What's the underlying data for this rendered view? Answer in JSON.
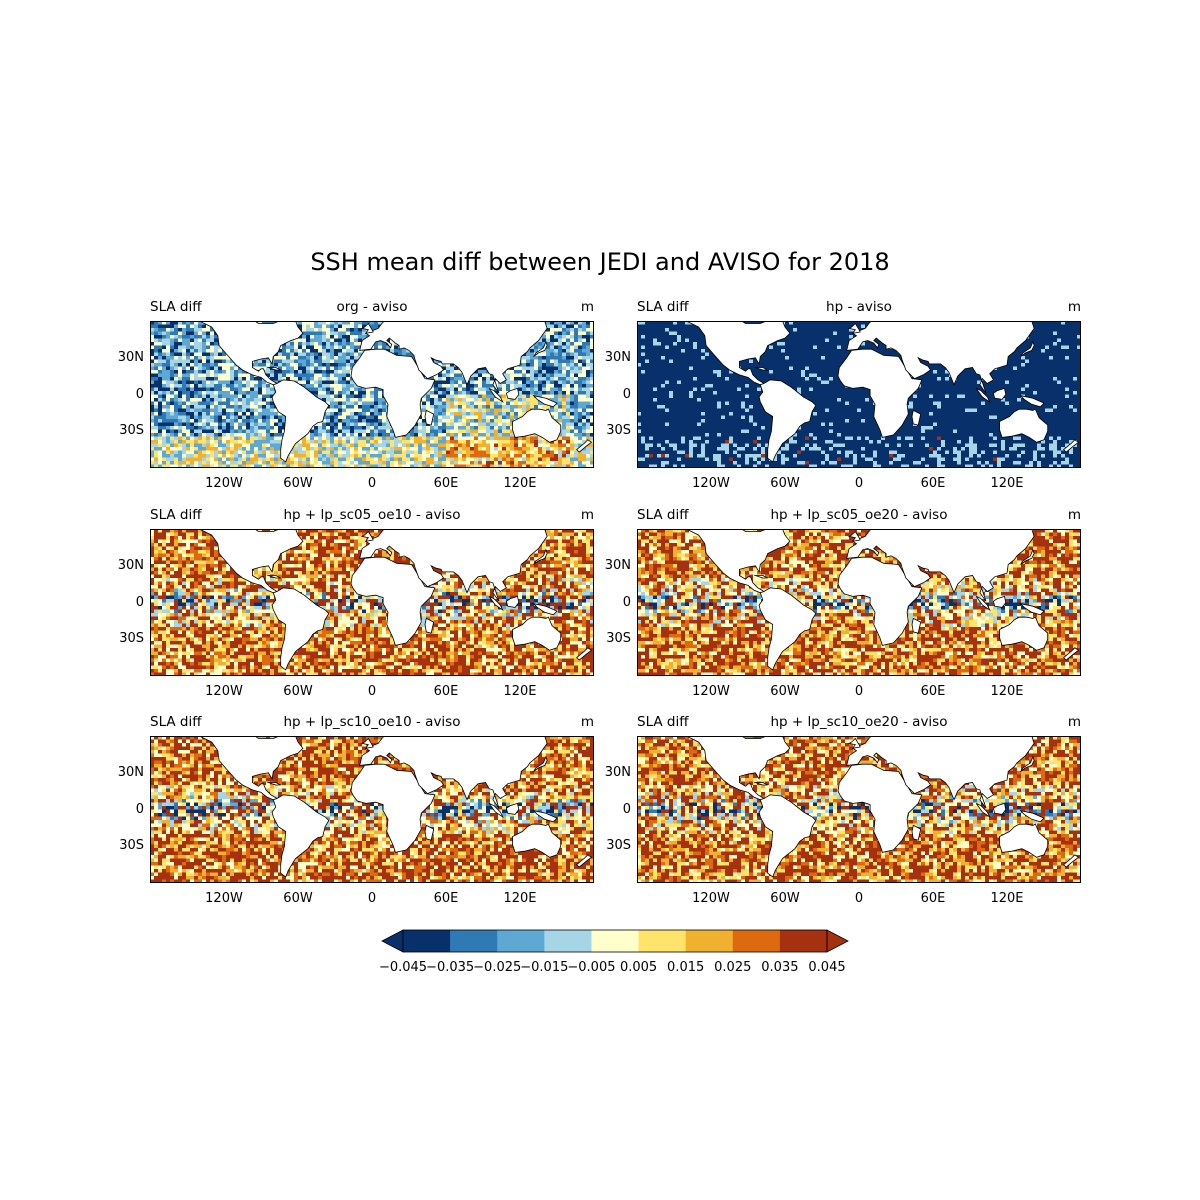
{
  "title": "SSH mean diff between JEDI and AVISO for 2018",
  "panels": [
    {
      "left_label": "SLA diff",
      "center_label": "org - aviso",
      "units": "m",
      "field": "org"
    },
    {
      "left_label": "SLA diff",
      "center_label": "hp - aviso",
      "units": "m",
      "field": "hp"
    },
    {
      "left_label": "SLA diff",
      "center_label": "hp + lp_sc05_oe10 - aviso",
      "units": "m",
      "field": "lp"
    },
    {
      "left_label": "SLA diff",
      "center_label": "hp + lp_sc05_oe20 - aviso",
      "units": "m",
      "field": "lp"
    },
    {
      "left_label": "SLA diff",
      "center_label": "hp + lp_sc10_oe10 - aviso",
      "units": "m",
      "field": "lp"
    },
    {
      "left_label": "SLA diff",
      "center_label": "hp + lp_sc10_oe20 - aviso",
      "units": "m",
      "field": "lp"
    }
  ],
  "axes": {
    "lat_ticks": [
      "30N",
      "0",
      "30S"
    ],
    "lon_ticks": [
      "120W",
      "60W",
      "0",
      "60E",
      "120E"
    ]
  },
  "chart_data": {
    "type": "heatmap",
    "projection": "PlateCarree",
    "lon_range": [
      -180,
      180
    ],
    "lat_range": [
      -60,
      60
    ],
    "lat_tick_values": [
      30,
      0,
      -30
    ],
    "lon_tick_values": [
      -120,
      -60,
      0,
      60,
      120
    ],
    "colorbar": {
      "levels": [
        -0.045,
        -0.035,
        -0.025,
        -0.015,
        -0.005,
        0.005,
        0.015,
        0.025,
        0.035,
        0.045
      ],
      "tick_labels": [
        "−0.045",
        "−0.035",
        "−0.025",
        "−0.015",
        "−0.005",
        "0.005",
        "0.015",
        "0.025",
        "0.035",
        "0.045"
      ],
      "colors": [
        "#08306b",
        "#2f79b5",
        "#5fa8d3",
        "#a6d5e8",
        "#ffffcc",
        "#ffe36b",
        "#f0b030",
        "#dd6a0f",
        "#a53110"
      ],
      "under_color": "#08306b",
      "over_color": "#a53110",
      "extend": "both"
    },
    "land_color": "#ffffff"
  }
}
